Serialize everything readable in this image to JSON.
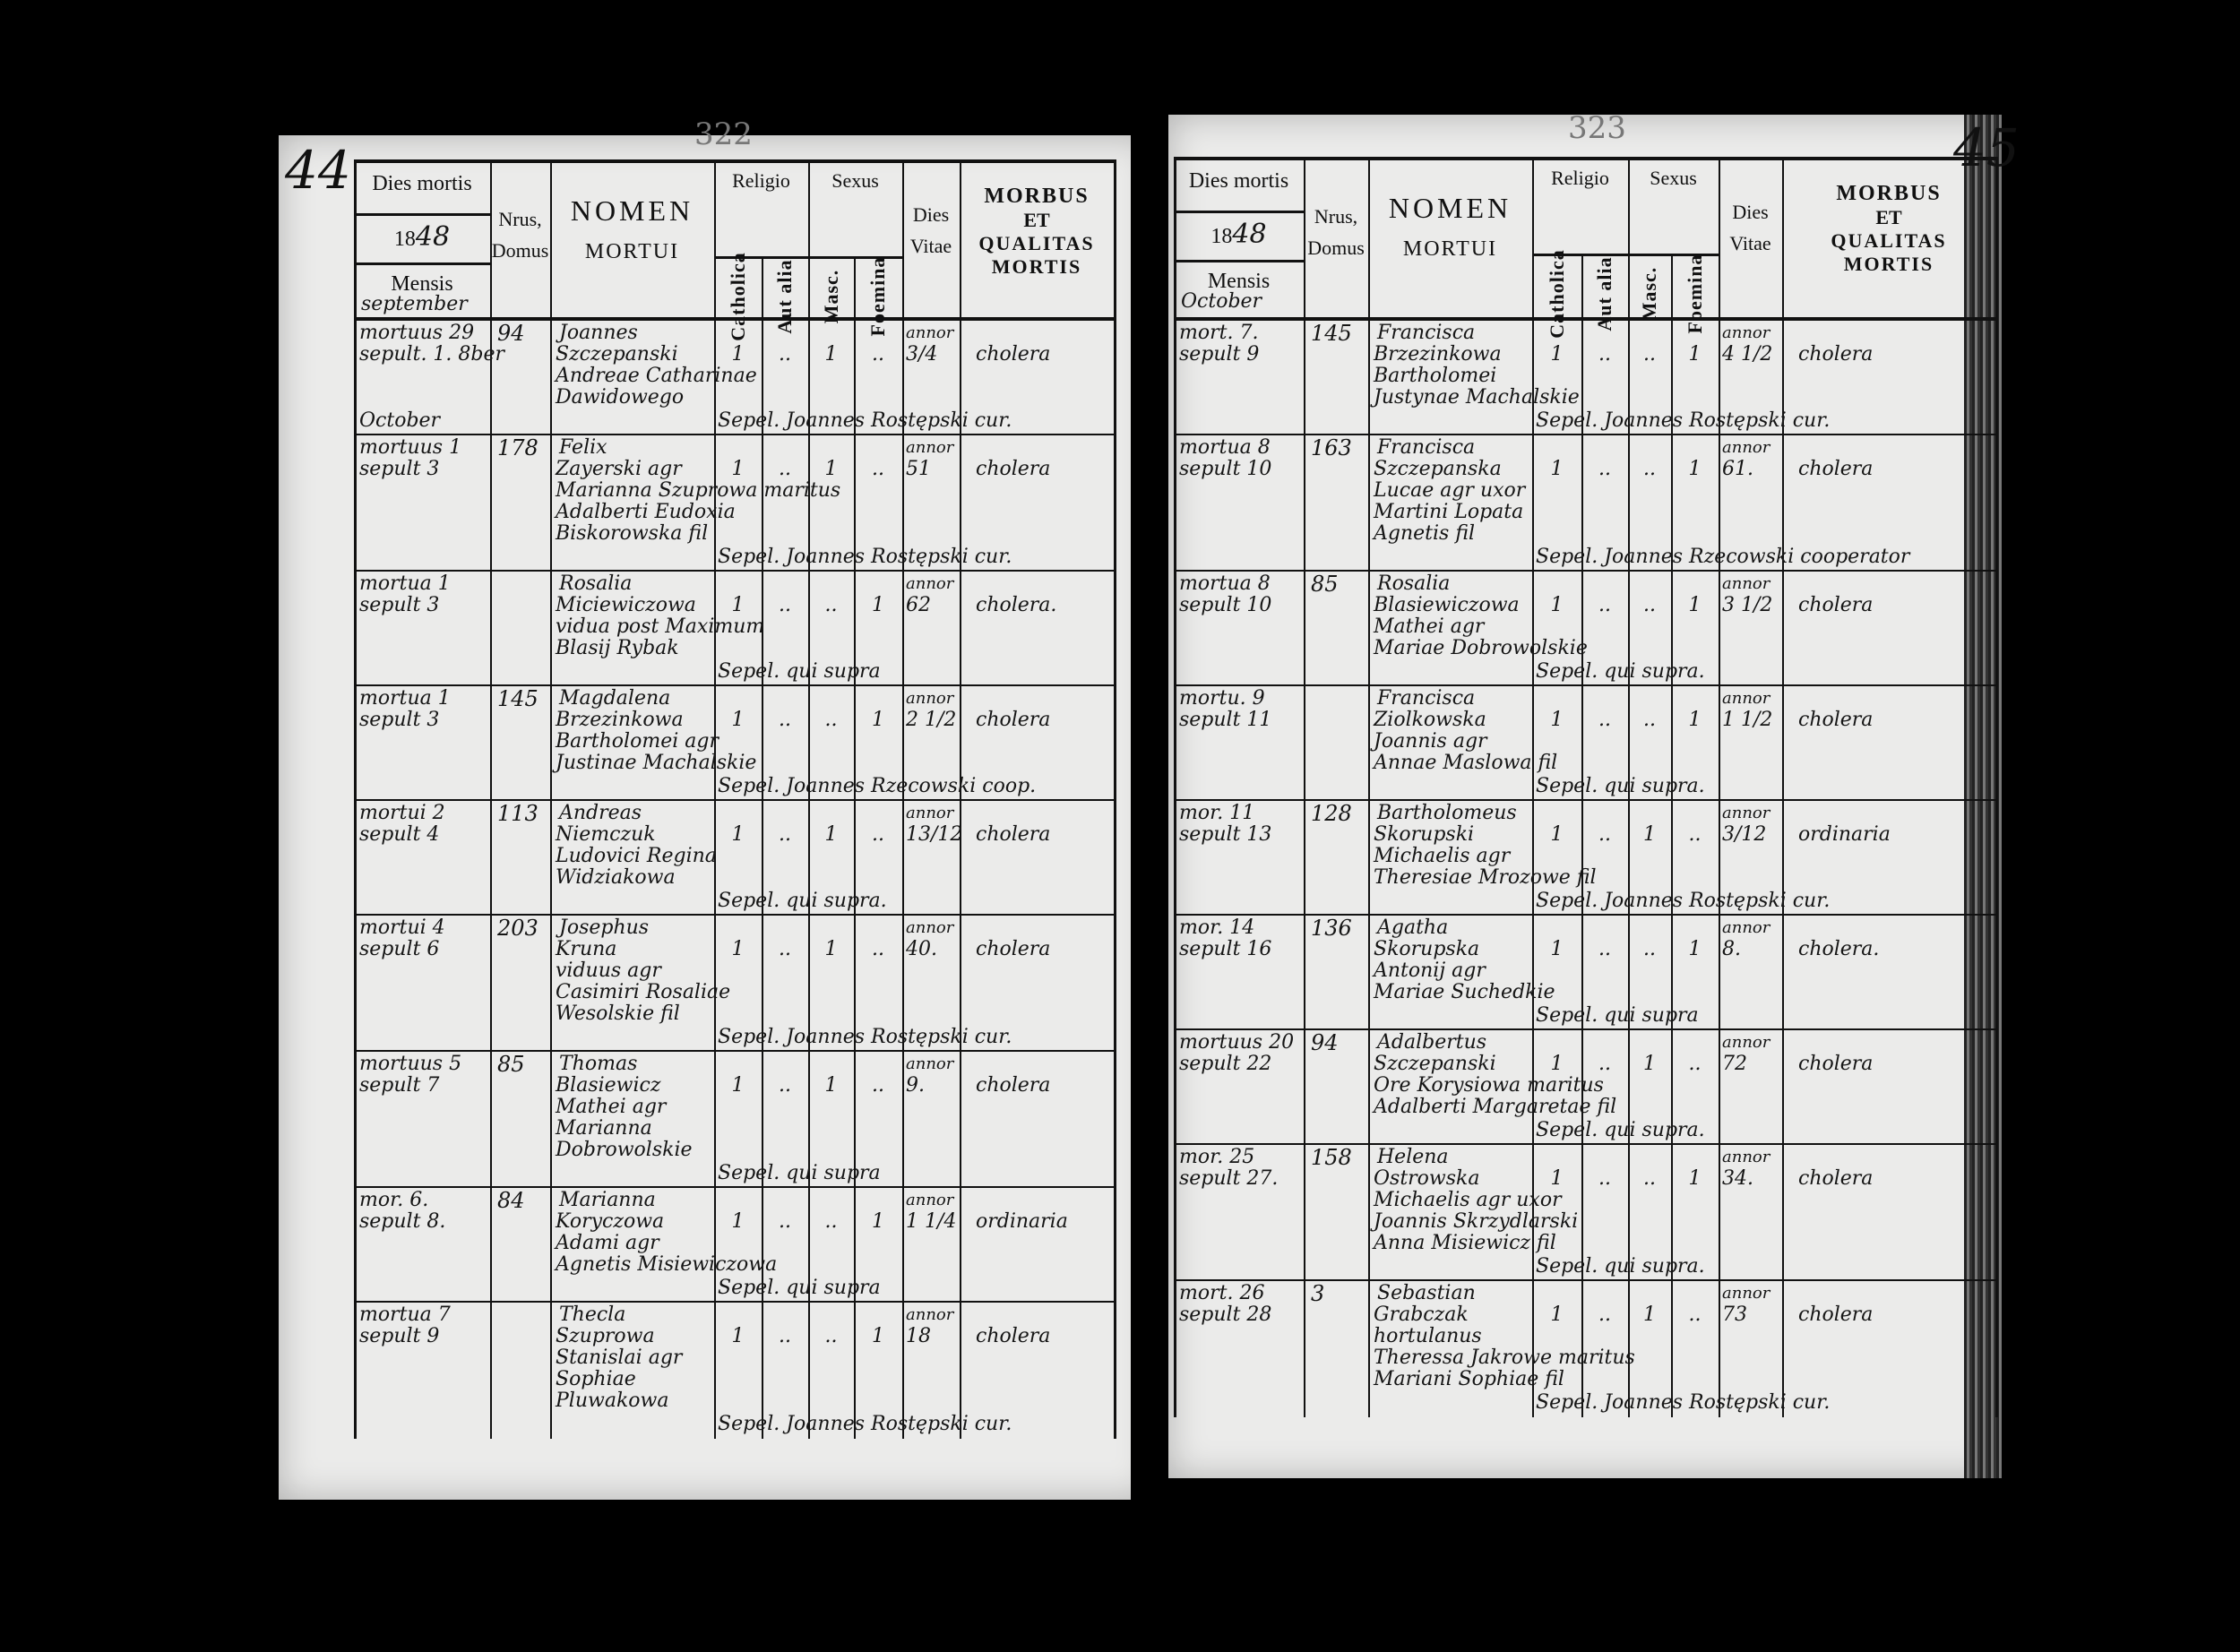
{
  "header": {
    "dies_mortis": "Dies mortis",
    "year_prefix": "18",
    "mensis": "Mensis",
    "nrus": "Nrus,",
    "domus": "Domus",
    "nomen": "NOMEN",
    "mortui": "MORTUI",
    "religio": "Religio",
    "catholica": "Catholica",
    "aut_alia": "Aut alia",
    "sexus": "Sexus",
    "masc": "Masc.",
    "foemina": "Foemina",
    "dies": "Dies",
    "vitae": "Vitae",
    "morbus": "MORBUS",
    "et": "ET",
    "qualitas": "QUALITAS",
    "mortis": "MORTIS",
    "age_unit": "annor"
  },
  "pages": [
    {
      "page_number": "44",
      "folio": "322",
      "year_suffix": "48",
      "month": "september",
      "rows": [
        {
          "date": [
            "mortuus 29",
            "sepult. 1. 8ber"
          ],
          "margin_note": "October",
          "domus": "94",
          "name": [
            "Joannes",
            "Szczepanski",
            "Andreae Catharinae",
            "Dawidowego"
          ],
          "catholica": "1",
          "aut_alia": "..",
          "masc": "1",
          "foemina": "..",
          "age": "3/4",
          "cause": "cholera",
          "burial": "Sepel. Joannes Rostępski cur."
        },
        {
          "date": [
            "mortuus 1",
            "sepult 3"
          ],
          "domus": "178",
          "name": [
            "Felix",
            "Zayerski agr",
            "Marianna Szuprowa maritus",
            "Adalberti Eudoxia",
            "Biskorowska fil"
          ],
          "catholica": "1",
          "aut_alia": "..",
          "masc": "1",
          "foemina": "..",
          "age": "51",
          "cause": "cholera",
          "burial": "Sepel. Joannes Rostępski cur."
        },
        {
          "date": [
            "mortua 1",
            "sepult 3"
          ],
          "domus": "",
          "name": [
            "Rosalia",
            "Miciewiczowa",
            "vidua post Maximum",
            "Blasij Rybak"
          ],
          "catholica": "1",
          "aut_alia": "..",
          "masc": "..",
          "foemina": "1",
          "age": "62",
          "cause": "cholera.",
          "burial": "Sepel. qui supra"
        },
        {
          "date": [
            "mortua 1",
            "sepult 3"
          ],
          "domus": "145",
          "name": [
            "Magdalena",
            "Brzezinkowa",
            "Bartholomei agr",
            "Justinae Machalskie"
          ],
          "catholica": "1",
          "aut_alia": "..",
          "masc": "..",
          "foemina": "1",
          "age": "2 1/2",
          "cause": "cholera",
          "burial": "Sepel. Joannes Rzecowski coop."
        },
        {
          "date": [
            "mortui 2",
            "sepult 4"
          ],
          "domus": "113",
          "name": [
            "Andreas",
            "Niemczuk",
            "Ludovici Regina",
            "Widziakowa"
          ],
          "catholica": "1",
          "aut_alia": "..",
          "masc": "1",
          "foemina": "..",
          "age": "13/12",
          "cause": "cholera",
          "burial": "Sepel. qui supra."
        },
        {
          "date": [
            "mortui 4",
            "sepult 6"
          ],
          "domus": "203",
          "name": [
            "Josephus",
            "Kruna",
            "viduus agr",
            "Casimiri Rosaliae",
            "Wesolskie fil"
          ],
          "catholica": "1",
          "aut_alia": "..",
          "masc": "1",
          "foemina": "..",
          "age": "40.",
          "cause": "cholera",
          "burial": "Sepel. Joannes Rostępski cur."
        },
        {
          "date": [
            "mortuus 5",
            "sepult 7"
          ],
          "domus": "85",
          "name": [
            "Thomas",
            "Blasiewicz",
            "Mathei agr",
            "Marianna",
            "Dobrowolskie"
          ],
          "catholica": "1",
          "aut_alia": "..",
          "masc": "1",
          "foemina": "..",
          "age": "9.",
          "cause": "cholera",
          "burial": "Sepel. qui supra"
        },
        {
          "date": [
            "mor. 6.",
            "sepult 8."
          ],
          "domus": "84",
          "name": [
            "Marianna",
            "Koryczowa",
            "Adami agr",
            "Agnetis Misiewiczowa"
          ],
          "catholica": "1",
          "aut_alia": "..",
          "masc": "..",
          "foemina": "1",
          "age": "1 1/4",
          "cause": "ordinaria",
          "burial": "Sepel. qui supra"
        },
        {
          "date": [
            "mortua 7",
            "sepult 9"
          ],
          "domus": "",
          "name": [
            "Thecla",
            "Szuprowa",
            "Stanislai agr",
            "Sophiae",
            "Pluwakowa"
          ],
          "catholica": "1",
          "aut_alia": "..",
          "masc": "..",
          "foemina": "1",
          "age": "18",
          "cause": "cholera",
          "burial": "Sepel. Joannes Rostępski cur."
        }
      ]
    },
    {
      "page_number": "45",
      "folio": "323",
      "year_suffix": "48",
      "month": "October",
      "rows": [
        {
          "date": [
            "mort. 7.",
            "sepult 9"
          ],
          "domus": "145",
          "name": [
            "Francisca",
            "Brzezinkowa",
            "Bartholomei",
            "Justynae Machalskie"
          ],
          "catholica": "1",
          "aut_alia": "..",
          "masc": "..",
          "foemina": "1",
          "age": "4 1/2",
          "cause": "cholera",
          "burial": "Sepel. Joannes Rostępski cur."
        },
        {
          "date": [
            "mortua 8",
            "sepult 10"
          ],
          "domus": "163",
          "name": [
            "Francisca",
            "Szczepanska",
            "Lucae agr uxor",
            "Martini Lopata",
            "Agnetis fil"
          ],
          "catholica": "1",
          "aut_alia": "..",
          "masc": "..",
          "foemina": "1",
          "age": "61.",
          "cause": "cholera",
          "burial": "Sepel. Joannes Rzecowski cooperator"
        },
        {
          "date": [
            "mortua 8",
            "sepult 10"
          ],
          "domus": "85",
          "name": [
            "Rosalia",
            "Blasiewiczowa",
            "Mathei agr",
            "Mariae Dobrowolskie"
          ],
          "catholica": "1",
          "aut_alia": "..",
          "masc": "..",
          "foemina": "1",
          "age": "3 1/2",
          "cause": "cholera",
          "burial": "Sepel. qui supra."
        },
        {
          "date": [
            "mortu. 9",
            "sepult 11"
          ],
          "domus": "",
          "name": [
            "Francisca",
            "Ziolkowska",
            "Joannis agr",
            "Annae Maslowa fil"
          ],
          "catholica": "1",
          "aut_alia": "..",
          "masc": "..",
          "foemina": "1",
          "age": "1 1/2",
          "cause": "cholera",
          "burial": "Sepel. qui supra."
        },
        {
          "date": [
            "mor. 11",
            "sepult 13"
          ],
          "domus": "128",
          "name": [
            "Bartholomeus",
            "Skorupski",
            "Michaelis agr",
            "Theresiae Mrozowe fil"
          ],
          "catholica": "1",
          "aut_alia": "..",
          "masc": "1",
          "foemina": "..",
          "age": "3/12",
          "cause": "ordinaria",
          "burial": "Sepel. Joannes Rostępski cur."
        },
        {
          "date": [
            "mor. 14",
            "sepult 16"
          ],
          "domus": "136",
          "name": [
            "Agatha",
            "Skorupska",
            "Antonij agr",
            "Mariae Suchedkie"
          ],
          "catholica": "1",
          "aut_alia": "..",
          "masc": "..",
          "foemina": "1",
          "age": "8.",
          "cause": "cholera.",
          "burial": "Sepel. qui supra"
        },
        {
          "date": [
            "mortuus 20",
            "sepult 22"
          ],
          "domus": "94",
          "name": [
            "Adalbertus",
            "Szczepanski",
            "Ore Korysiowa maritus",
            "Adalberti Margaretae fil"
          ],
          "catholica": "1",
          "aut_alia": "..",
          "masc": "1",
          "foemina": "..",
          "age": "72",
          "cause": "cholera",
          "burial": "Sepel. qui supra."
        },
        {
          "date": [
            "mor. 25",
            "sepult 27."
          ],
          "domus": "158",
          "name": [
            "Helena",
            "Ostrowska",
            "Michaelis agr uxor",
            "Joannis Skrzydlarski",
            "Anna Misiewicz fil"
          ],
          "catholica": "1",
          "aut_alia": "..",
          "masc": "..",
          "foemina": "1",
          "age": "34.",
          "cause": "cholera",
          "burial": "Sepel. qui supra."
        },
        {
          "date": [
            "mort. 26",
            "sepult 28"
          ],
          "domus": "3",
          "name": [
            "Sebastian",
            "Grabczak",
            "hortulanus",
            "Theressa Jakrowe maritus",
            "Mariani Sophiae fil"
          ],
          "catholica": "1",
          "aut_alia": "..",
          "masc": "1",
          "foemina": "..",
          "age": "73",
          "cause": "cholera",
          "burial": "Sepel. Joannes Rostępski cur."
        }
      ]
    }
  ]
}
